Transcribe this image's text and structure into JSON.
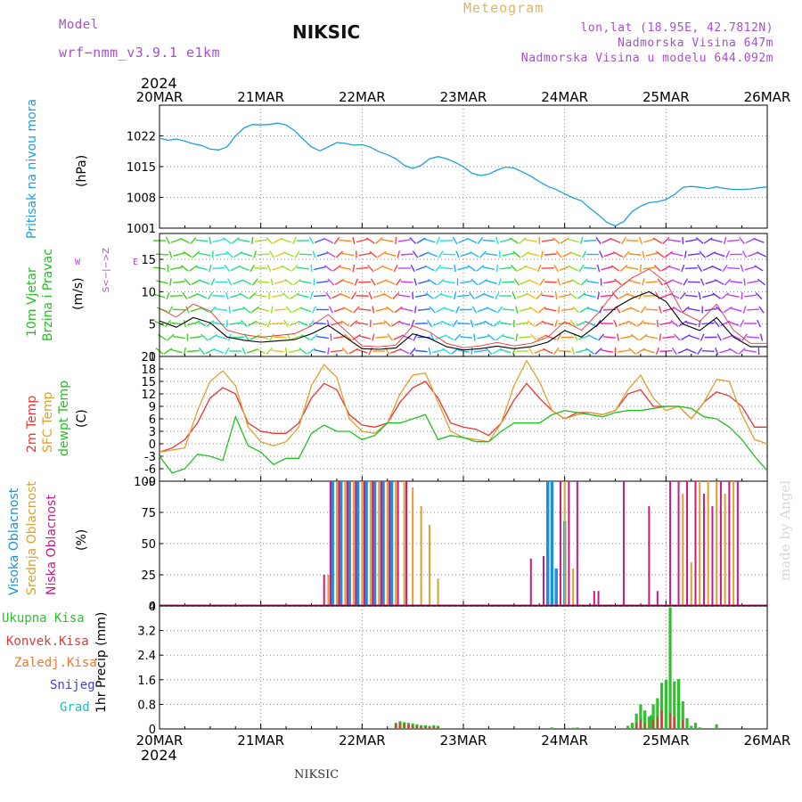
{
  "header": {
    "model_label": "Model",
    "model_name": "wrf−nmm_v3.9.1  e1km",
    "title": "NIKSIC",
    "meteogram": "Meteogram",
    "lonlat": "lon,lat (18.95E, 42.7812N)",
    "elevation": "Nadmorska Visina 647m",
    "model_elevation": "Nadmorska Visina u modelu 644.092m",
    "year_top": "2024",
    "year_bottom": "2024"
  },
  "footer": {
    "station": "NIKSIC",
    "credit": "made by Angel"
  },
  "x_ticks": [
    "20MAR",
    "21MAR",
    "22MAR",
    "23MAR",
    "24MAR",
    "25MAR",
    "26MAR"
  ],
  "colors": {
    "pressure": "#1ea0e0",
    "temp2m": "#ee3333",
    "sfc": "#e0a030",
    "dew": "#22c022",
    "high_cloud": "#1e90d8",
    "mid_cloud": "#dda030",
    "low_cloud": "#cc1880",
    "total_precip": "#2fbf2f",
    "conv_precip": "#dd3a3a"
  },
  "labels": {
    "pressure": {
      "name": "Pritisak na nivou mora",
      "unit": "(hPa)"
    },
    "wind": {
      "name1": "10m Vjetar",
      "name2": "Brzina i Pravac",
      "unit": "(m/s)",
      "compass_ns": "S<−|−>Z",
      "compass_w": "W",
      "compass_e": "E"
    },
    "temp": {
      "t2m": "2m Temp",
      "sfc": "SFC Temp",
      "dew": "dewpt Temp",
      "unit": "(C)"
    },
    "cloud": {
      "high": "Visoka Oblacnost",
      "mid": "Srednja Oblacnost",
      "low": "Niska Oblacnost",
      "unit": "(%)"
    },
    "precip": {
      "total": "Ukupna Kisa",
      "conv": "Konvek.Kisa",
      "frozen": "Zaledj.Kisa",
      "snow": "Snijeg",
      "graupel": "Grad",
      "unit": "1hr Precip (mm)"
    }
  },
  "chart_data": [
    {
      "type": "line",
      "name": "pressure",
      "ylabel": "(hPa)",
      "ylim": [
        1001,
        1029
      ],
      "yticks": [
        1001,
        1008,
        1015,
        1022
      ],
      "x_hours": [
        0,
        2,
        4,
        6,
        8,
        10,
        12,
        14,
        16,
        18,
        20,
        22,
        24,
        26,
        28,
        30,
        32,
        34,
        36,
        38,
        40,
        42,
        44,
        46,
        48,
        50,
        52,
        54,
        56,
        58,
        60,
        62,
        64,
        66,
        68,
        70,
        72,
        74,
        76,
        78,
        80,
        82,
        84,
        86,
        88,
        90,
        92,
        94,
        96,
        98,
        100,
        102,
        104,
        106,
        108,
        110,
        112,
        114,
        116,
        118,
        120,
        122,
        124,
        126,
        128,
        130,
        132,
        134,
        136,
        138,
        140,
        142,
        144
      ],
      "values": [
        1021.5,
        1021.0,
        1021.3,
        1020.8,
        1020.2,
        1019.8,
        1019.0,
        1018.8,
        1019.5,
        1022.0,
        1023.8,
        1024.6,
        1024.5,
        1024.6,
        1024.9,
        1024.5,
        1023.2,
        1021.3,
        1019.5,
        1018.6,
        1019.5,
        1020.5,
        1020.3,
        1019.9,
        1020.0,
        1019.4,
        1018.4,
        1017.7,
        1016.8,
        1015.3,
        1014.6,
        1015.3,
        1016.8,
        1017.3,
        1016.8,
        1016.0,
        1015.0,
        1013.5,
        1013.0,
        1013.3,
        1014.2,
        1014.9,
        1014.7,
        1013.8,
        1012.8,
        1011.6,
        1010.5,
        1009.8,
        1008.8,
        1007.9,
        1007.2,
        1005.5,
        1004.0,
        1002.3,
        1001.5,
        1002.5,
        1004.8,
        1006.0,
        1006.8,
        1007.0,
        1007.5,
        1008.6,
        1010.3,
        1010.5,
        1010.3,
        1010.0,
        1010.4,
        1010.0,
        1009.8,
        1009.8,
        1009.9,
        1010.2,
        1010.4
      ],
      "grid": true
    },
    {
      "type": "line",
      "name": "wind_speed",
      "ylabel": "(m/s)",
      "ylim": [
        0,
        19
      ],
      "yticks": [
        0,
        5,
        10,
        15
      ],
      "x_hours": [
        0,
        4,
        8,
        12,
        16,
        20,
        24,
        28,
        32,
        36,
        40,
        44,
        48,
        52,
        56,
        60,
        64,
        68,
        72,
        76,
        80,
        84,
        88,
        92,
        96,
        100,
        104,
        108,
        112,
        116,
        120,
        124,
        128,
        132,
        136,
        140,
        144
      ],
      "values": [
        5.5,
        4.5,
        6,
        5.2,
        3,
        2.5,
        2.2,
        2.4,
        2.6,
        3.5,
        4.8,
        3,
        1.2,
        1.1,
        1.3,
        3.5,
        2.8,
        1.5,
        1,
        1.2,
        1.6,
        1.2,
        1.5,
        2.2,
        4,
        3,
        5,
        7.5,
        9,
        10,
        8.5,
        5,
        4,
        6,
        3,
        1.5,
        1.5
      ],
      "grid": true
    },
    {
      "type": "line",
      "name": "temperature",
      "ylabel": "(C)",
      "ylim": [
        -9,
        21
      ],
      "yticks": [
        -9,
        -6,
        -3,
        0,
        3,
        6,
        9,
        12,
        15,
        18,
        21
      ],
      "x_hours": [
        0,
        3,
        6,
        9,
        12,
        15,
        18,
        21,
        24,
        27,
        30,
        33,
        36,
        39,
        42,
        45,
        48,
        51,
        54,
        57,
        60,
        63,
        66,
        69,
        72,
        75,
        78,
        81,
        84,
        87,
        90,
        93,
        96,
        99,
        102,
        105,
        108,
        111,
        114,
        117,
        120,
        123,
        126,
        129,
        132,
        135,
        138,
        141,
        144
      ],
      "series": [
        {
          "name": "2m Temp",
          "values": [
            -2,
            -1,
            1,
            5,
            11,
            13.5,
            12,
            5,
            3,
            2.5,
            2.5,
            5,
            11,
            14.5,
            13,
            7,
            4.5,
            4,
            5,
            10,
            13.5,
            15,
            11,
            5,
            4,
            3.5,
            2,
            5,
            10.5,
            14.5,
            11,
            8,
            6,
            7.5,
            7.5,
            7,
            8,
            12,
            13,
            9,
            9,
            9,
            6,
            10,
            12.5,
            11.5,
            9,
            4,
            4
          ]
        },
        {
          "name": "SFC Temp",
          "values": [
            -2,
            -1.5,
            -1,
            8,
            15,
            17.5,
            14,
            4,
            0.5,
            -0.5,
            0.5,
            4,
            14,
            19,
            16,
            6,
            3,
            2.5,
            5,
            12,
            16.5,
            17,
            10,
            3,
            1.5,
            1,
            0.5,
            5,
            14,
            20,
            15,
            8,
            6,
            7,
            7.5,
            7,
            8,
            13,
            16.5,
            11,
            8,
            9,
            6,
            10,
            15.5,
            15,
            7,
            1,
            0
          ]
        },
        {
          "name": "dewpt Temp",
          "values": [
            -3,
            -7,
            -6,
            -2.5,
            -3,
            -4,
            6.5,
            -0.5,
            -2,
            -5,
            -3.5,
            -3.5,
            2.5,
            4.5,
            3,
            3,
            1,
            2,
            5,
            5,
            6,
            7,
            1,
            2,
            1.5,
            0.5,
            0.5,
            3,
            5,
            5,
            5,
            7,
            8,
            7.5,
            7,
            6.5,
            7.5,
            8,
            8,
            8.5,
            9,
            9,
            8.5,
            6.5,
            6,
            4,
            1,
            -3,
            -6.5
          ]
        }
      ],
      "grid": true
    },
    {
      "type": "bar",
      "name": "cloud_cover",
      "ylabel": "(%)",
      "ylim": [
        0,
        100
      ],
      "yticks": [
        0,
        25,
        50,
        75,
        100
      ],
      "series": [
        {
          "name": "Visoka Oblacnost",
          "x_hours": [
            41,
            43,
            45,
            47,
            49,
            51,
            53,
            55,
            92,
            93,
            94,
            96
          ],
          "values": [
            100,
            100,
            100,
            100,
            100,
            100,
            100,
            100,
            100,
            100,
            30,
            68
          ]
        },
        {
          "name": "Srednja Oblacnost",
          "x_hours": [
            40,
            42,
            44,
            46,
            48,
            50,
            52,
            54,
            56,
            58,
            60,
            62,
            64,
            66,
            96,
            98,
            124,
            126,
            128,
            130,
            132,
            134,
            136
          ],
          "values": [
            25,
            100,
            100,
            100,
            100,
            100,
            100,
            100,
            100,
            100,
            95,
            80,
            65,
            22,
            100,
            30,
            90,
            35,
            100,
            100,
            100,
            90,
            100
          ]
        },
        {
          "name": "Niska Oblacnost",
          "x_hours": [
            39,
            40.5,
            42.5,
            44.5,
            46.5,
            48.5,
            50.5,
            52.5,
            54.5,
            56.5,
            58.5,
            88,
            91,
            95,
            97,
            99,
            103,
            104,
            110,
            116,
            118,
            121,
            123,
            125,
            127,
            129,
            131,
            133,
            135,
            137
          ],
          "values": [
            25,
            100,
            100,
            100,
            100,
            100,
            100,
            100,
            100,
            100,
            100,
            38,
            40,
            100,
            100,
            100,
            12,
            12,
            100,
            80,
            12,
            100,
            100,
            100,
            100,
            90,
            80,
            100,
            100,
            100
          ]
        }
      ],
      "grid": true
    },
    {
      "type": "bar",
      "name": "precip_1hr",
      "ylabel": "1hr Precip (mm)",
      "ylim": [
        0,
        4
      ],
      "yticks": [
        0,
        0.8,
        1.6,
        2.4,
        3.2,
        4
      ],
      "series": [
        {
          "name": "Ukupna Kisa",
          "x_hours": [
            56,
            57,
            58,
            59,
            60,
            61,
            62,
            63,
            64,
            65,
            66,
            93,
            98,
            99,
            108,
            111,
            112,
            113,
            114,
            115,
            116,
            116.5,
            117,
            118,
            119,
            120,
            121,
            122,
            123,
            124,
            125,
            126,
            127,
            128,
            132
          ],
          "values": [
            0.2,
            0.25,
            0.22,
            0.2,
            0.18,
            0.15,
            0.12,
            0.12,
            0.1,
            0.12,
            0.1,
            0.05,
            0.04,
            0.05,
            0.02,
            0.1,
            0.2,
            0.5,
            0.8,
            0.6,
            0.4,
            0.45,
            0.8,
            1.0,
            1.5,
            1.6,
            3.95,
            1.55,
            1.62,
            0.9,
            0.35,
            0.1,
            0.2,
            0.05,
            0.15
          ]
        },
        {
          "name": "Konvek.Kisa",
          "x_hours": [
            56,
            57,
            58,
            59,
            60,
            61,
            62,
            63,
            64,
            65,
            66,
            113,
            114,
            115,
            117,
            118,
            119,
            121,
            122,
            124
          ],
          "values": [
            0.15,
            0.2,
            0.18,
            0.15,
            0.12,
            0.1,
            0.08,
            0.08,
            0.06,
            0.08,
            0.06,
            0.2,
            0.3,
            0.2,
            0.3,
            0.4,
            0.6,
            0.5,
            0.4,
            0.3
          ]
        }
      ]
    }
  ]
}
